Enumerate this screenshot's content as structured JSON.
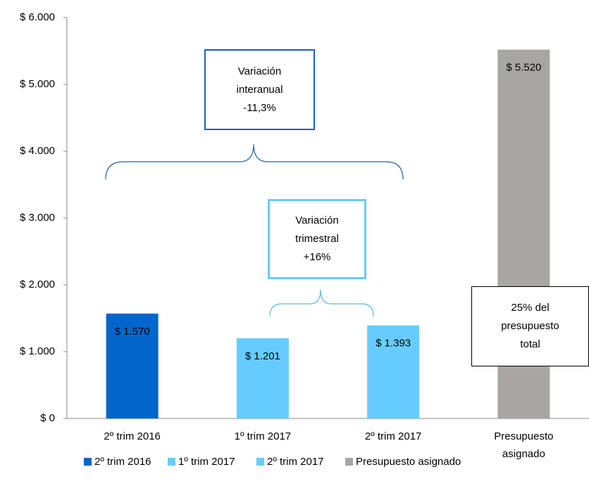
{
  "chart_data": {
    "type": "bar",
    "categories": [
      "2º trim 2016",
      "1º trim 2017",
      "2º trim 2017",
      "Presupuesto asignado"
    ],
    "values": [
      1570,
      1201,
      1393,
      5520
    ],
    "value_labels": [
      "$ 1.570",
      "$ 1.201",
      "$ 1.393",
      "$ 5.520"
    ],
    "colors": [
      "#0066cc",
      "#66ccff",
      "#66ccff",
      "#aaa5a5"
    ],
    "ylim": [
      0,
      6000
    ],
    "yticks": [
      {
        "value": 0,
        "label": "$ 0"
      },
      {
        "value": 1000,
        "label": "$ 1.000"
      },
      {
        "value": 2000,
        "label": "$ 2.000"
      },
      {
        "value": 3000,
        "label": "$ 3.000"
      },
      {
        "value": 4000,
        "label": "$ 4.000"
      },
      {
        "value": 5000,
        "label": "$ 5.000"
      },
      {
        "value": 6000,
        "label": "$ 6.000"
      }
    ],
    "grid": false,
    "legend": "bottom",
    "annotations": [
      {
        "lines": [
          "Variación",
          "interanual",
          "-11,3%"
        ]
      },
      {
        "lines": [
          "Variación",
          "trimestral",
          "+16%"
        ]
      },
      {
        "lines": [
          "25% del",
          "presupuesto",
          "total"
        ]
      }
    ]
  }
}
